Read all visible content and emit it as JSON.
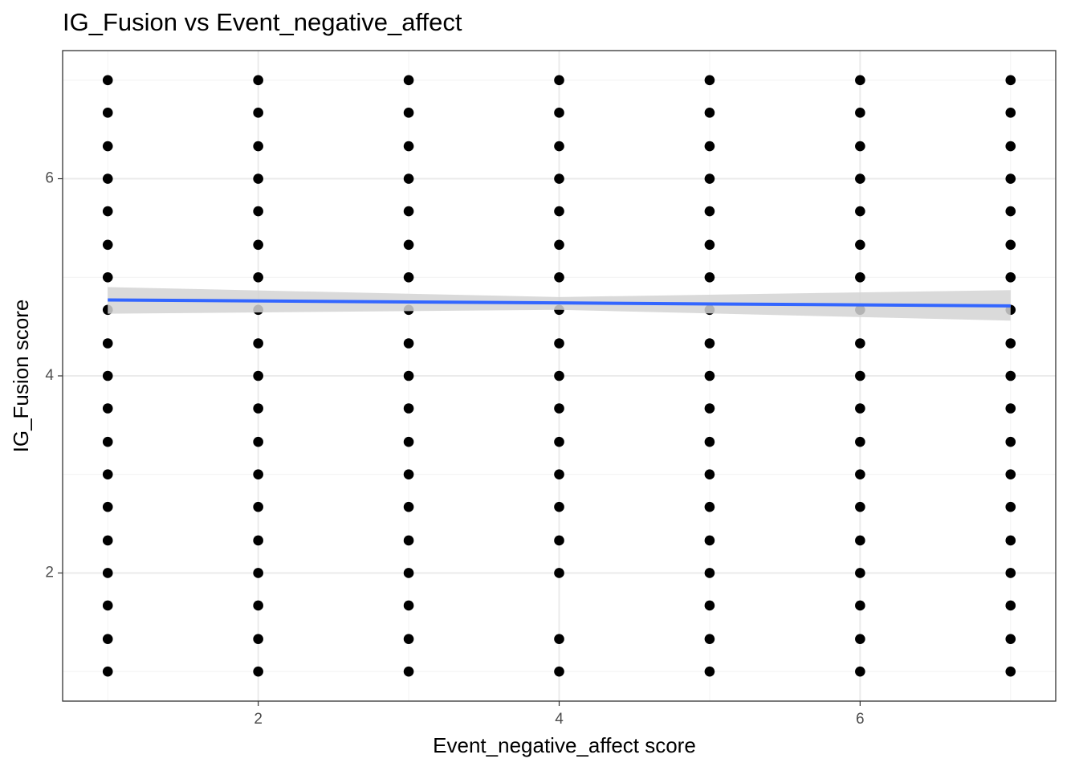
{
  "chart_data": {
    "type": "scatter",
    "title": "IG_Fusion vs Event_negative_affect",
    "x_label": "Event_negative_affect score",
    "y_label": "IG_Fusion score",
    "x": [
      1,
      1,
      1,
      1,
      1,
      1,
      1,
      1,
      1,
      1,
      1,
      1,
      1,
      1,
      1,
      1,
      1,
      1,
      1,
      2,
      2,
      2,
      2,
      2,
      2,
      2,
      2,
      2,
      2,
      2,
      2,
      2,
      2,
      2,
      2,
      2,
      2,
      2,
      3,
      3,
      3,
      3,
      3,
      3,
      3,
      3,
      3,
      3,
      3,
      3,
      3,
      3,
      3,
      3,
      3,
      3,
      3,
      4,
      4,
      4,
      4,
      4,
      4,
      4,
      4,
      4,
      4,
      4,
      4,
      4,
      4,
      4,
      4,
      4,
      4,
      5,
      5,
      5,
      5,
      5,
      5,
      5,
      5,
      5,
      5,
      5,
      5,
      5,
      5,
      5,
      5,
      5,
      5,
      5,
      6,
      6,
      6,
      6,
      6,
      6,
      6,
      6,
      6,
      6,
      6,
      6,
      6,
      6,
      6,
      6,
      6,
      6,
      6,
      7,
      7,
      7,
      7,
      7,
      7,
      7,
      7,
      7,
      7,
      7,
      7,
      7,
      7,
      7,
      7,
      7,
      7,
      7
    ],
    "y": [
      7,
      6.67,
      6.33,
      6,
      5.67,
      5.33,
      5,
      4.67,
      4.33,
      4,
      3.67,
      3.33,
      3,
      2.67,
      2.33,
      2,
      1.67,
      1.33,
      1,
      7,
      6.67,
      6.33,
      6,
      5.67,
      5.33,
      5,
      4.67,
      4.33,
      4,
      3.67,
      3.33,
      3,
      2.67,
      2.33,
      2,
      1.67,
      1.33,
      1,
      7,
      6.67,
      6.33,
      6,
      5.67,
      5.33,
      5,
      4.67,
      4.33,
      4,
      3.67,
      3.33,
      3,
      2.67,
      2.33,
      2,
      1.67,
      1.33,
      1,
      7,
      6.67,
      6.33,
      6,
      5.67,
      5.33,
      5,
      4.67,
      4.33,
      4,
      3.67,
      3.33,
      3,
      2.67,
      2.33,
      2,
      1.33,
      1,
      7,
      6.67,
      6.33,
      6,
      5.67,
      5.33,
      5,
      4.67,
      4.33,
      4,
      3.67,
      3.33,
      3,
      2.67,
      2.33,
      2,
      1.67,
      1.33,
      1,
      7,
      6.67,
      6.33,
      6,
      5.67,
      5.33,
      5,
      4.67,
      4.33,
      4,
      3.67,
      3.33,
      3,
      2.67,
      2.33,
      2,
      1.67,
      1.33,
      1,
      7,
      6.67,
      6.33,
      6,
      5.67,
      5.33,
      5,
      4.67,
      4.33,
      4,
      3.67,
      3.33,
      3,
      2.67,
      2.33,
      2,
      1.67,
      1.33,
      1
    ],
    "color": "#000000",
    "smooth": {
      "x": [
        1,
        4,
        7
      ],
      "y": [
        4.77,
        4.74,
        4.71
      ],
      "lower": [
        4.63,
        4.67,
        4.56
      ],
      "upper": [
        4.9,
        4.8,
        4.87
      ],
      "color": "#3366ff",
      "fill": "#d3d3d3"
    },
    "xlim": [
      0.7,
      7.3
    ],
    "ylim": [
      0.7,
      7.3
    ],
    "xticks": [
      2,
      4,
      6
    ],
    "yticks": [
      2,
      4,
      6
    ],
    "grid": true,
    "minor_grid": true
  }
}
